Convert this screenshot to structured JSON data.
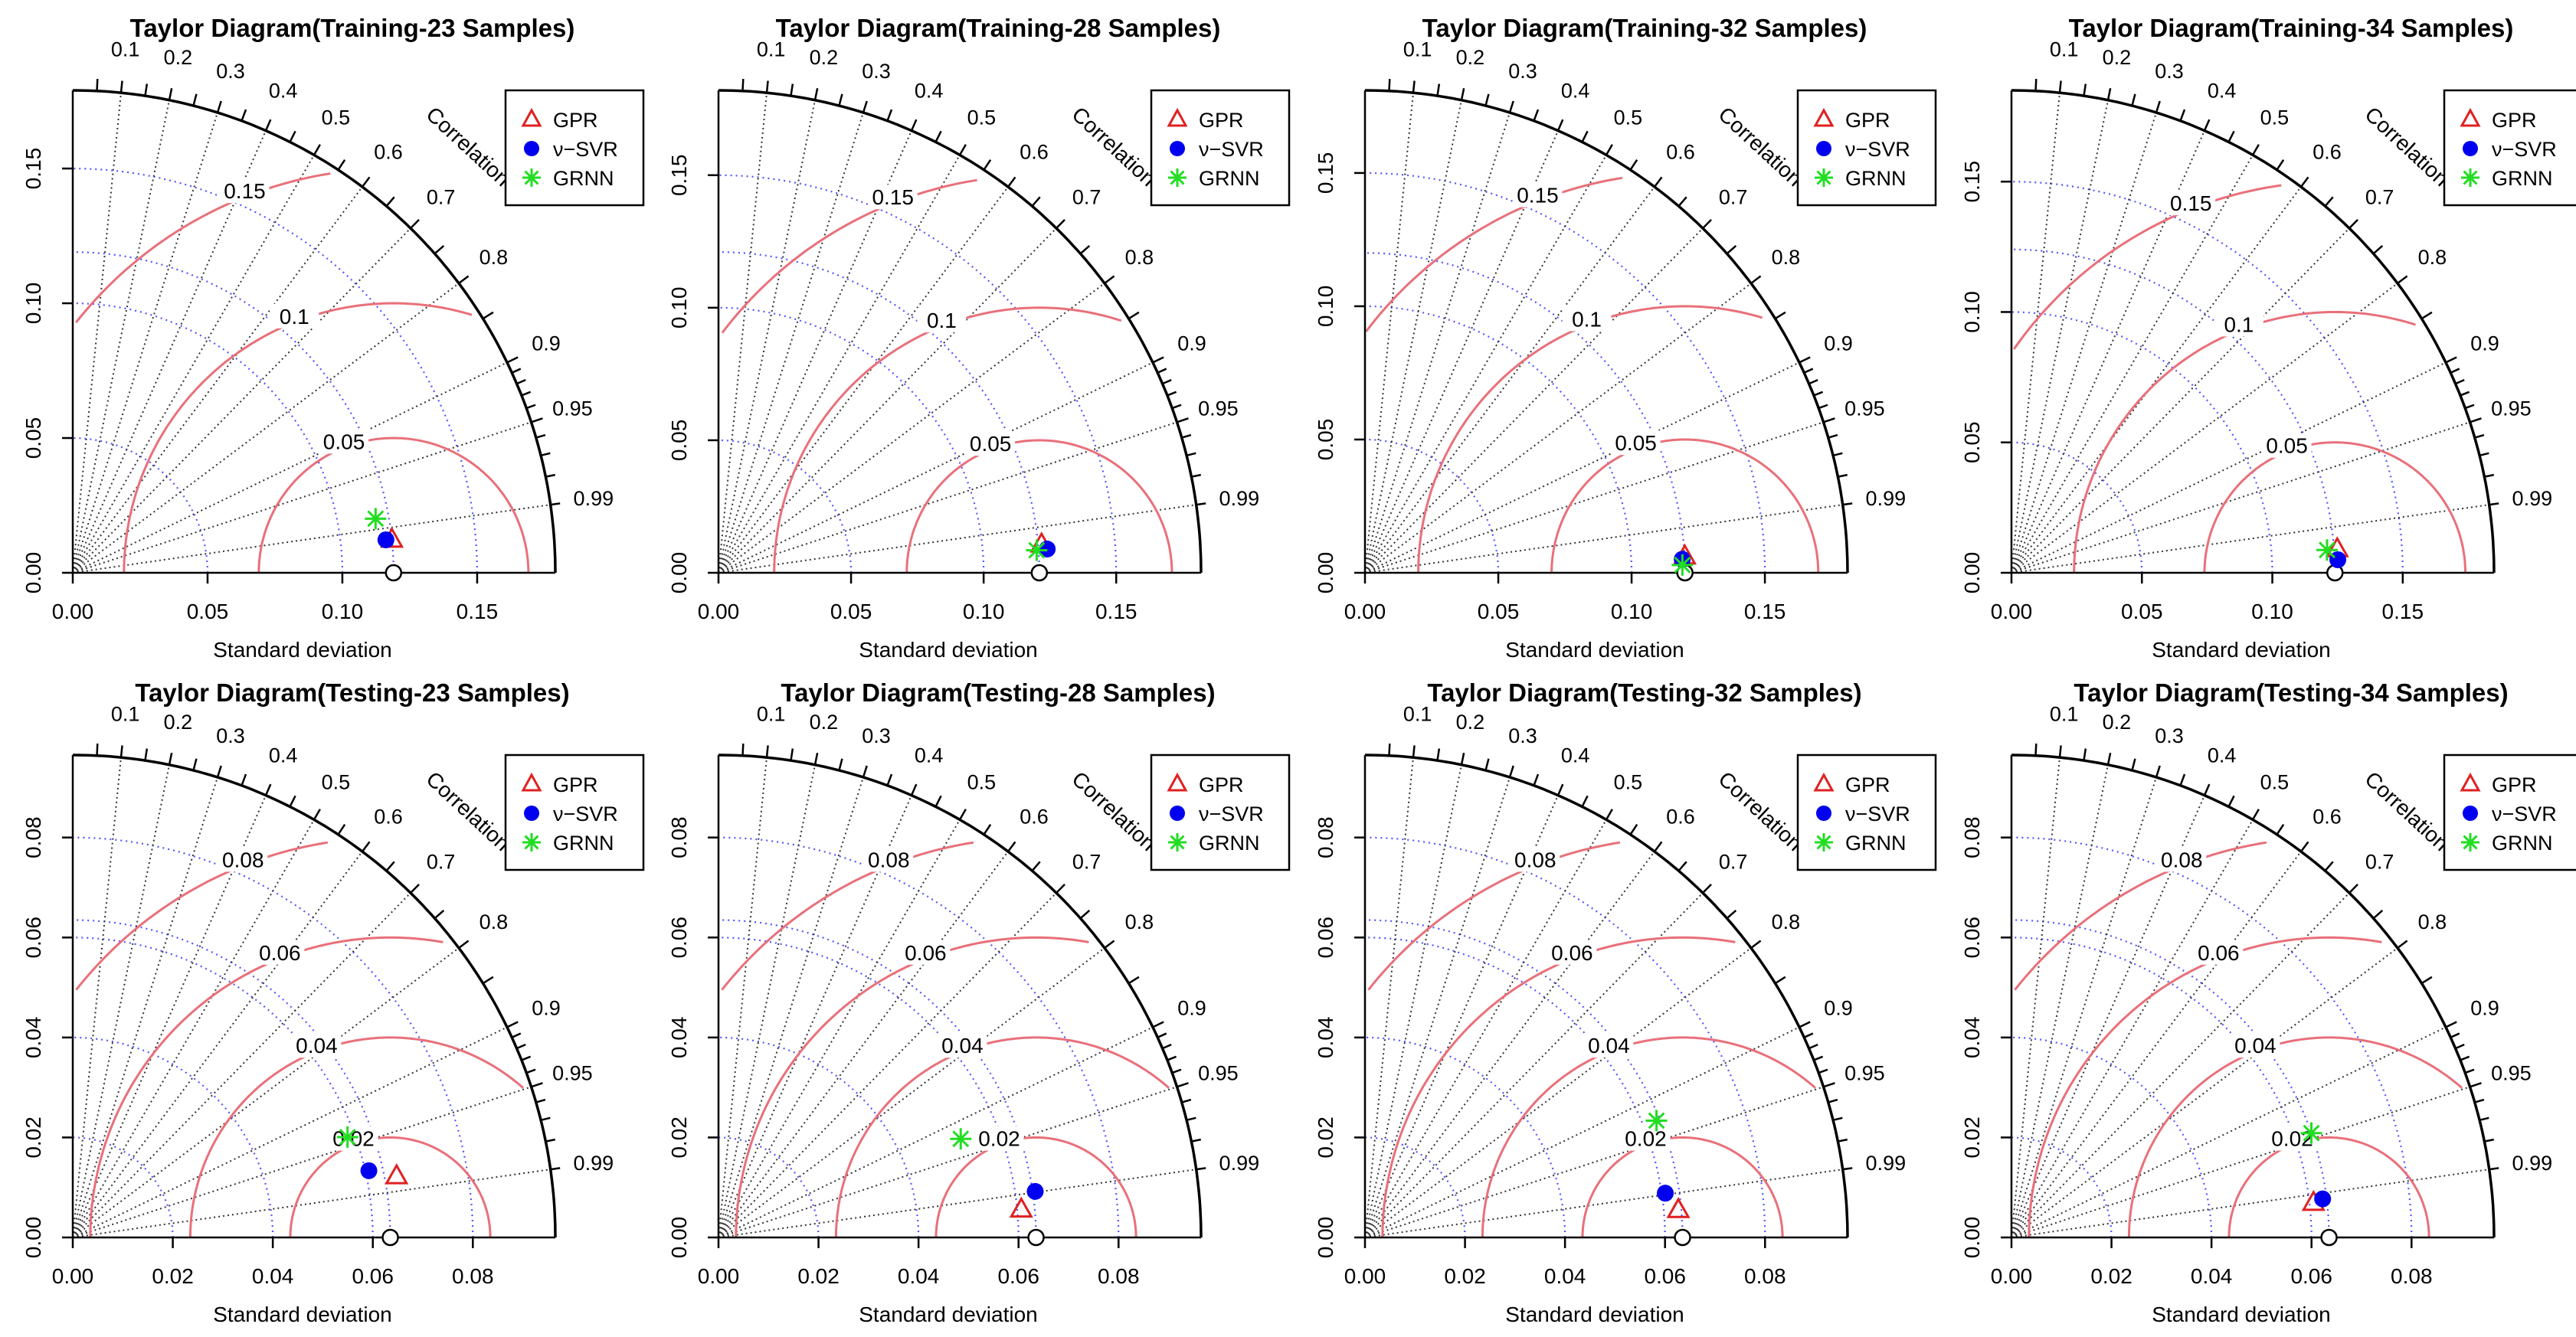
{
  "style": {
    "ref_arc_color": "#5555ff",
    "rmsd_color": "#e8707a",
    "corr_line_color": "#333333",
    "gpr_color": "#e02020",
    "svr_color": "#0000ee",
    "grnn_color": "#22dd22",
    "axis_color": "#000000"
  },
  "shared": {
    "xlabel": "Standard deviation",
    "corr_label": "Correlation",
    "corr_ticks": [
      "0.1",
      "0.2",
      "0.3",
      "0.4",
      "0.5",
      "0.6",
      "0.7",
      "0.8",
      "0.9",
      "0.95",
      "0.99"
    ],
    "legend": [
      {
        "name": "GPR",
        "marker": "open-triangle",
        "color": "#e02020"
      },
      {
        "name": "ν−SVR",
        "marker": "filled-circle",
        "color": "#0000ee"
      },
      {
        "name": "GRNN",
        "marker": "asterisk",
        "color": "#22dd22"
      }
    ],
    "reference_marker": "open-circle"
  },
  "chart_data": [
    {
      "type": "taylor",
      "title": "Taylor Diagram(Training-23 Samples)",
      "xlabel": "Standard deviation",
      "ref_sd": 0.119,
      "sd_max": 0.179,
      "sd_ticks": [
        "0.00",
        "0.05",
        "0.10",
        "0.15"
      ],
      "rmsd_levels": [
        "0.05",
        "0.1",
        "0.15"
      ],
      "points": [
        {
          "model": "GPR",
          "sd": 0.119,
          "corr": 0.9947
        },
        {
          "model": "ν−SVR",
          "sd": 0.1168,
          "corr": 0.9945
        },
        {
          "model": "GRNN",
          "sd": 0.1141,
          "corr": 0.9844
        }
      ]
    },
    {
      "type": "taylor",
      "title": "Taylor Diagram(Training-28 Samples)",
      "xlabel": "Standard deviation",
      "ref_sd": 0.121,
      "sd_max": 0.182,
      "sd_ticks": [
        "0.00",
        "0.05",
        "0.10",
        "0.15"
      ],
      "rmsd_levels": [
        "0.05",
        "0.1",
        "0.15"
      ],
      "points": [
        {
          "model": "GPR",
          "sd": 0.1223,
          "corr": 0.9962
        },
        {
          "model": "ν−SVR",
          "sd": 0.1243,
          "corr": 0.9974
        },
        {
          "model": "GRNN",
          "sd": 0.1203,
          "corr": 0.9975
        }
      ]
    },
    {
      "type": "taylor",
      "title": "Taylor Diagram(Training-32 Samples)",
      "xlabel": "Standard deviation",
      "ref_sd": 0.12,
      "sd_max": 0.181,
      "sd_ticks": [
        "0.00",
        "0.05",
        "0.10",
        "0.15"
      ],
      "rmsd_levels": [
        "0.05",
        "0.1",
        "0.15"
      ],
      "points": [
        {
          "model": "GPR",
          "sd": 0.1201,
          "corr": 0.9987
        },
        {
          "model": "ν−SVR",
          "sd": 0.1191,
          "corr": 0.9991
        },
        {
          "model": "GRNN",
          "sd": 0.1191,
          "corr": 0.9997
        }
      ]
    },
    {
      "type": "taylor",
      "title": "Taylor Diagram(Training-34 Samples)",
      "xlabel": "Standard deviation",
      "ref_sd": 0.124,
      "sd_max": 0.185,
      "sd_ticks": [
        "0.00",
        "0.05",
        "0.10",
        "0.15"
      ],
      "rmsd_levels": [
        "0.05",
        "0.1",
        "0.15"
      ],
      "points": [
        {
          "model": "GPR",
          "sd": 0.1252,
          "corr": 0.9974
        },
        {
          "model": "ν−SVR",
          "sd": 0.1252,
          "corr": 0.9992
        },
        {
          "model": "GRNN",
          "sd": 0.1213,
          "corr": 0.9974
        }
      ]
    },
    {
      "type": "taylor",
      "title": "Taylor Diagram(Testing-23 Samples)",
      "xlabel": "Standard deviation",
      "ref_sd": 0.0635,
      "sd_max": 0.0965,
      "sd_ticks": [
        "0.00",
        "0.02",
        "0.04",
        "0.06",
        "0.08"
      ],
      "rmsd_levels": [
        "0.02",
        "0.04",
        "0.06",
        "0.08"
      ],
      "points": [
        {
          "model": "GPR",
          "sd": 0.0659,
          "corr": 0.9826
        },
        {
          "model": "ν−SVR",
          "sd": 0.0607,
          "corr": 0.9755
        },
        {
          "model": "GRNN",
          "sd": 0.0585,
          "corr": 0.9393
        }
      ]
    },
    {
      "type": "taylor",
      "title": "Taylor Diagram(Testing-28 Samples)",
      "xlabel": "Standard deviation",
      "ref_sd": 0.0635,
      "sd_max": 0.0965,
      "sd_ticks": [
        "0.00",
        "0.02",
        "0.04",
        "0.06",
        "0.08"
      ],
      "rmsd_levels": [
        "0.02",
        "0.04",
        "0.06",
        "0.08"
      ],
      "points": [
        {
          "model": "GPR",
          "sd": 0.0608,
          "corr": 0.9958
        },
        {
          "model": "ν−SVR",
          "sd": 0.064,
          "corr": 0.9896
        },
        {
          "model": "GRNN",
          "sd": 0.0523,
          "corr": 0.9262
        }
      ]
    },
    {
      "type": "taylor",
      "title": "Taylor Diagram(Testing-32 Samples)",
      "xlabel": "Standard deviation",
      "ref_sd": 0.0635,
      "sd_max": 0.0965,
      "sd_ticks": [
        "0.00",
        "0.02",
        "0.04",
        "0.06",
        "0.08"
      ],
      "rmsd_levels": [
        "0.02",
        "0.04",
        "0.06",
        "0.08"
      ],
      "points": [
        {
          "model": "GPR",
          "sd": 0.0629,
          "corr": 0.9962
        },
        {
          "model": "ν−SVR",
          "sd": 0.0607,
          "corr": 0.9893
        },
        {
          "model": "GRNN",
          "sd": 0.0628,
          "corr": 0.9282
        }
      ]
    },
    {
      "type": "taylor",
      "title": "Taylor Diagram(Testing-34 Samples)",
      "xlabel": "Standard deviation",
      "ref_sd": 0.0635,
      "sd_max": 0.0965,
      "sd_ticks": [
        "0.00",
        "0.02",
        "0.04",
        "0.06",
        "0.08"
      ],
      "rmsd_levels": [
        "0.02",
        "0.04",
        "0.06",
        "0.08"
      ],
      "points": [
        {
          "model": "GPR",
          "sd": 0.0608,
          "corr": 0.9935
        },
        {
          "model": "ν−SVR",
          "sd": 0.0627,
          "corr": 0.9924
        },
        {
          "model": "GRNN",
          "sd": 0.0635,
          "corr": 0.9444
        }
      ]
    }
  ]
}
